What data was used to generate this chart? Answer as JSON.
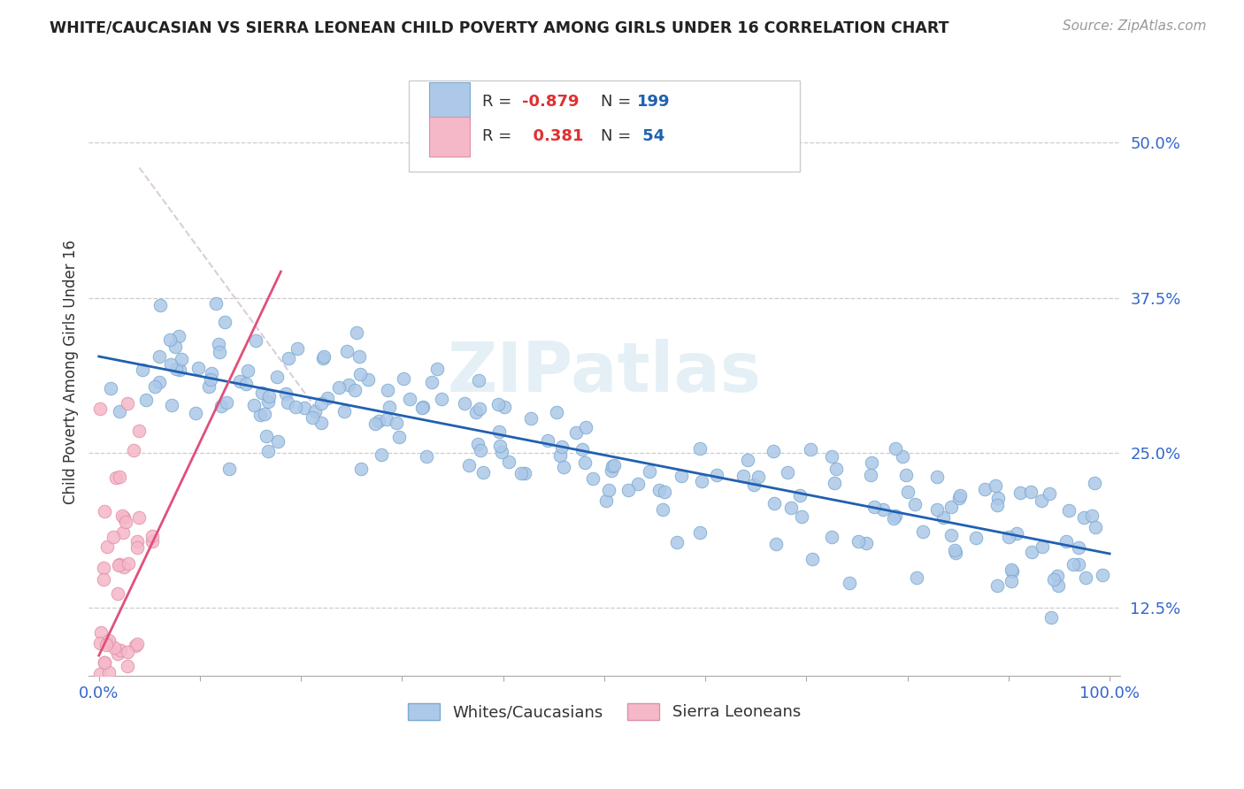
{
  "title": "WHITE/CAUCASIAN VS SIERRA LEONEAN CHILD POVERTY AMONG GIRLS UNDER 16 CORRELATION CHART",
  "source": "Source: ZipAtlas.com",
  "ylabel": "Child Poverty Among Girls Under 16",
  "blue_R": -0.879,
  "blue_N": 199,
  "pink_R": 0.381,
  "pink_N": 54,
  "blue_color": "#adc8e8",
  "pink_color": "#f5b8c8",
  "blue_line_color": "#2060b0",
  "pink_line_color": "#e0507a",
  "blue_edge_color": "#7aaad0",
  "pink_edge_color": "#e090a8",
  "legend_blue_face": "#adc8e8",
  "legend_pink_face": "#f5b8c8",
  "watermark": "ZIPatlas",
  "bg_color": "#ffffff",
  "grid_color": "#cccccc",
  "yticks": [
    0.125,
    0.25,
    0.375,
    0.5
  ],
  "ytick_labels": [
    "12.5%",
    "25.0%",
    "37.5%",
    "50.0%"
  ],
  "R_color": "#e03030",
  "N_color": "#2060b0",
  "legend_label_color": "#333333",
  "dashed_color": "#d8c8d8"
}
